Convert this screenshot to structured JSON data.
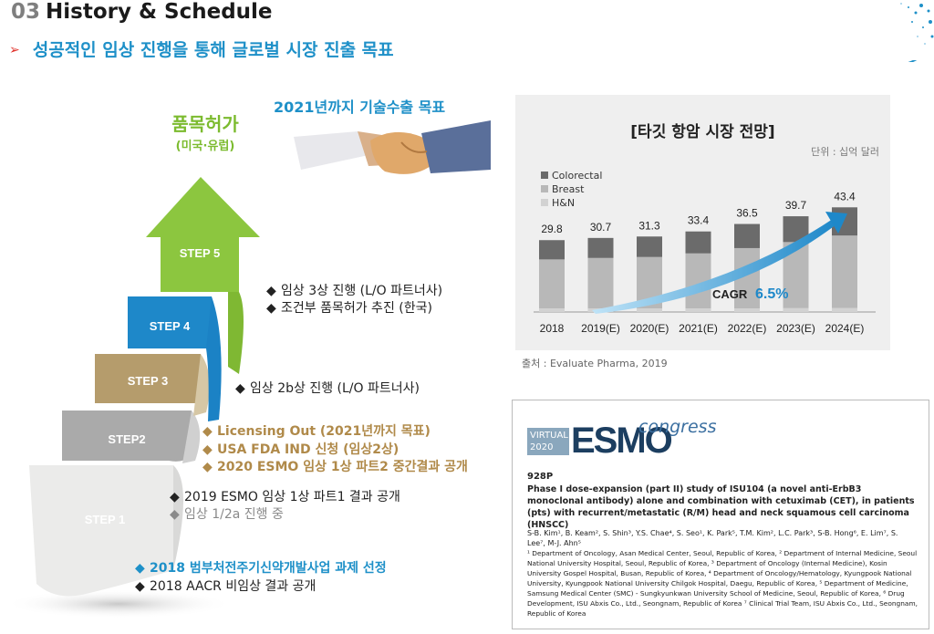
{
  "header": {
    "number": "03",
    "title": "History & Schedule",
    "arrow": "➢",
    "subtitle": "성공적인 임상 진행을 통해 글로벌 시장 진출 목표"
  },
  "approval": {
    "title": "품목허가",
    "sub": "(미국·유럽)"
  },
  "goal_title": "2021년까지 기술수출 목표",
  "steps": [
    {
      "label": "STEP 1",
      "color": "#e8e8e6"
    },
    {
      "label": "STEP2",
      "color": "#a9a9a9"
    },
    {
      "label": "STEP 3",
      "color": "#b39b6b"
    },
    {
      "label": "STEP 4",
      "color": "#1e88c9"
    },
    {
      "label": "STEP 5",
      "color": "#8cc63f"
    }
  ],
  "notes": {
    "step5": [
      "임상 3상 진행 (L/O 파트너사)",
      "조건부 품목허가 추진 (한국)"
    ],
    "step4": [
      "임상 2b상 진행 (L/O 파트너사)"
    ],
    "step3": [
      "Licensing Out (2021년까지 목표)",
      "USA FDA IND 신청 (임상2상)",
      "2020 ESMO 임상 1상 파트2 중간결과 공개"
    ],
    "step2": [
      "2019 ESMO 임상 1상 파트1 결과 공개",
      "임상 1/2a 진행 중"
    ],
    "step1": [
      "2018 범부처전주기신약개발사업 과제 선정",
      "2018 AACR 비임상 결과 공개"
    ]
  },
  "chart_panel": {
    "title": "[타깃 항암 시장 전망]",
    "unit": "단위 : 십억 달러",
    "cagr_label": "CAGR",
    "cagr_value": "6.5%"
  },
  "chart_data": {
    "type": "bar",
    "stacked": true,
    "categories": [
      "2018",
      "2019(E)",
      "2020(E)",
      "2021(E)",
      "2022(E)",
      "2023(E)",
      "2024(E)"
    ],
    "totals": [
      29.8,
      30.7,
      31.3,
      33.4,
      36.5,
      39.7,
      43.4
    ],
    "series": [
      {
        "name": "H&N",
        "values": [
          1.5,
          1.5,
          1.5,
          1.5,
          1.5,
          1.6,
          1.7
        ]
      },
      {
        "name": "Breast",
        "values": [
          20.3,
          20.9,
          21.3,
          22.8,
          25.0,
          27.4,
          30.0
        ]
      },
      {
        "name": "Colorectal",
        "values": [
          8.0,
          8.3,
          8.5,
          9.1,
          10.0,
          10.7,
          11.7
        ]
      }
    ],
    "legend": [
      "Colorectal",
      "Breast",
      "H&N"
    ],
    "legend_position": "top-left",
    "colors": {
      "Colorectal": "#6b6b6b",
      "Breast": "#b8b8b8",
      "H&N": "#d2d2d2"
    },
    "ylim": [
      0,
      50
    ],
    "grid": false,
    "title": "[타깃 항암 시장 전망]"
  },
  "source": "출처 : Evaluate Pharma, 2019",
  "paper": {
    "logo_virtual": "VIRTUAL 2020",
    "logo_esmo": "ESMO",
    "logo_congress": "congress",
    "id": "928P",
    "title": "Phase I dose-expansion (part II) study of ISU104 (a novel anti-ErbB3 monoclonal antibody) alone and combination with cetuximab (CET), in patients (pts) with recurrent/metastatic (R/M) head and neck squamous cell carcinoma (HNSCC)",
    "authors": "S-B. Kim¹, B. Keam², S. Shin³, Y.S. Chae⁴, S. Seo¹, K. Park⁵, T.M. Kim², L.C. Park³, S-B. Hong⁶, E. Lim⁷, S. Lee⁷, M-J. Ahn⁵",
    "affiliations": "¹ Department of Oncology, Asan Medical Center, Seoul, Republic of Korea, ² Department of Internal Medicine, Seoul National University Hospital, Seoul, Republic of Korea, ³ Department of Oncology (Internal Medicine), Kosin University Gospel Hospital, Busan, Republic of Korea, ⁴ Department of Oncology/Hematology, Kyungpook National University, Kyungpook National University Chilgok Hospital, Daegu, Republic of Korea, ⁵ Department of Medicine, Samsung Medical Center (SMC) - Sungkyunkwan University School of Medicine, Seoul, Republic of Korea, ⁶ Drug Development, ISU Abxis Co., Ltd., Seongnam, Republic of Korea ⁷ Clinical Trial Team, ISU Abxis Co., Ltd., Seongnam, Republic of Korea"
  },
  "colors": {
    "accent_blue": "#1e90c8",
    "green": "#8cc63f",
    "gold": "#b08a4a",
    "red_arrow": "#e0312a"
  }
}
